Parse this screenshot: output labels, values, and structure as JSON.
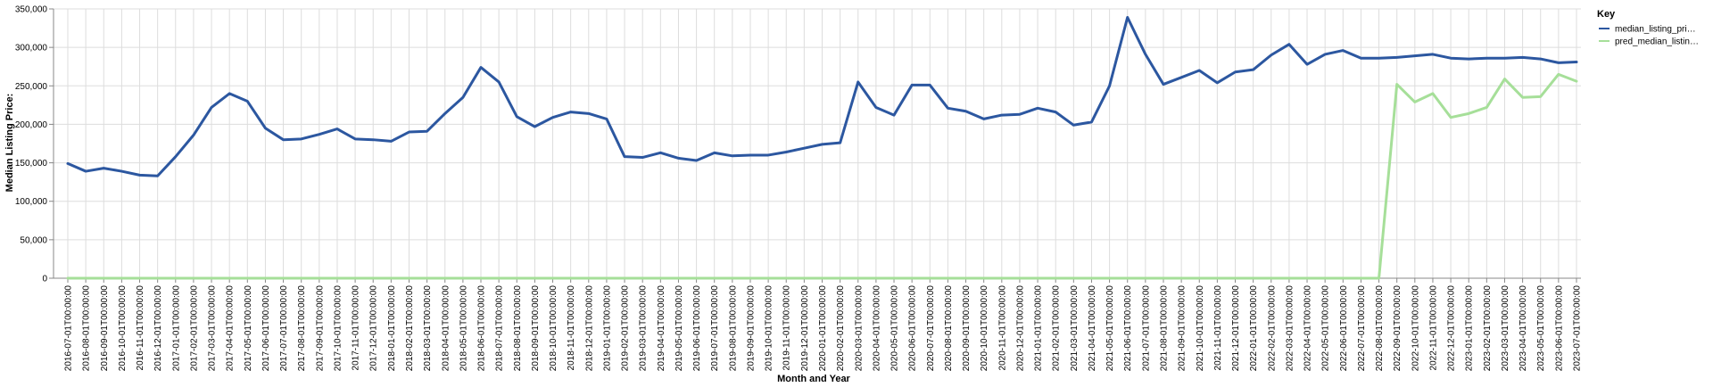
{
  "chart_data": {
    "type": "line",
    "xlabel": "Month and Year",
    "ylabel": "Median Listing Price:",
    "ylim": [
      0,
      350000
    ],
    "yticks": [
      0,
      50000,
      100000,
      150000,
      200000,
      250000,
      300000,
      350000
    ],
    "ytick_labels": [
      "0",
      "50,000",
      "100,000",
      "150,000",
      "200,000",
      "250,000",
      "300,000",
      "350,000"
    ],
    "grid": true,
    "legend": {
      "title": "Key",
      "placement": "right",
      "entries": [
        "median_listing_pri…",
        "pred_median_listin…"
      ]
    },
    "categories": [
      "2016-07-01T00:00:00",
      "2016-08-01T00:00:00",
      "2016-09-01T00:00:00",
      "2016-10-01T00:00:00",
      "2016-11-01T00:00:00",
      "2016-12-01T00:00:00",
      "2017-01-01T00:00:00",
      "2017-02-01T00:00:00",
      "2017-03-01T00:00:00",
      "2017-04-01T00:00:00",
      "2017-05-01T00:00:00",
      "2017-06-01T00:00:00",
      "2017-07-01T00:00:00",
      "2017-08-01T00:00:00",
      "2017-09-01T00:00:00",
      "2017-10-01T00:00:00",
      "2017-11-01T00:00:00",
      "2017-12-01T00:00:00",
      "2018-01-01T00:00:00",
      "2018-02-01T00:00:00",
      "2018-03-01T00:00:00",
      "2018-04-01T00:00:00",
      "2018-05-01T00:00:00",
      "2018-06-01T00:00:00",
      "2018-07-01T00:00:00",
      "2018-08-01T00:00:00",
      "2018-09-01T00:00:00",
      "2018-10-01T00:00:00",
      "2018-11-01T00:00:00",
      "2018-12-01T00:00:00",
      "2019-01-01T00:00:00",
      "2019-02-01T00:00:00",
      "2019-03-01T00:00:00",
      "2019-04-01T00:00:00",
      "2019-05-01T00:00:00",
      "2019-06-01T00:00:00",
      "2019-07-01T00:00:00",
      "2019-08-01T00:00:00",
      "2019-09-01T00:00:00",
      "2019-10-01T00:00:00",
      "2019-11-01T00:00:00",
      "2019-12-01T00:00:00",
      "2020-01-01T00:00:00",
      "2020-02-01T00:00:00",
      "2020-03-01T00:00:00",
      "2020-04-01T00:00:00",
      "2020-05-01T00:00:00",
      "2020-06-01T00:00:00",
      "2020-07-01T00:00:00",
      "2020-08-01T00:00:00",
      "2020-09-01T00:00:00",
      "2020-10-01T00:00:00",
      "2020-11-01T00:00:00",
      "2020-12-01T00:00:00",
      "2021-01-01T00:00:00",
      "2021-02-01T00:00:00",
      "2021-03-01T00:00:00",
      "2021-04-01T00:00:00",
      "2021-05-01T00:00:00",
      "2021-06-01T00:00:00",
      "2021-07-01T00:00:00",
      "2021-08-01T00:00:00",
      "2021-09-01T00:00:00",
      "2021-10-01T00:00:00",
      "2021-11-01T00:00:00",
      "2021-12-01T00:00:00",
      "2022-01-01T00:00:00",
      "2022-02-01T00:00:00",
      "2022-03-01T00:00:00",
      "2022-04-01T00:00:00",
      "2022-05-01T00:00:00",
      "2022-06-01T00:00:00",
      "2022-07-01T00:00:00",
      "2022-08-01T00:00:00",
      "2022-09-01T00:00:00",
      "2022-10-01T00:00:00",
      "2022-11-01T00:00:00",
      "2022-12-01T00:00:00",
      "2023-01-01T00:00:00",
      "2023-02-01T00:00:00",
      "2023-03-01T00:00:00",
      "2023-04-01T00:00:00",
      "2023-05-01T00:00:00",
      "2023-06-01T00:00:00",
      "2023-07-01T00:00:00"
    ],
    "series": [
      {
        "name": "median_listing_pri…",
        "color": "#2c57a0",
        "values": [
          149000,
          139000,
          143000,
          139000,
          134000,
          133000,
          158000,
          186000,
          222000,
          240000,
          230000,
          195000,
          180000,
          181000,
          187000,
          194000,
          181000,
          180000,
          178000,
          190000,
          191000,
          214000,
          235000,
          274000,
          255000,
          210000,
          197000,
          209000,
          216000,
          214000,
          207000,
          158000,
          157000,
          163000,
          156000,
          153000,
          163000,
          159000,
          160000,
          160000,
          164000,
          169000,
          174000,
          176000,
          255000,
          222000,
          212000,
          251000,
          251000,
          221000,
          217000,
          207000,
          212000,
          213000,
          221000,
          216000,
          199000,
          203000,
          250000,
          339000,
          291000,
          252000,
          261000,
          270000,
          254000,
          268000,
          271000,
          290000,
          304000,
          278000,
          291000,
          296000,
          286000,
          286000,
          287000,
          289000,
          291000,
          286000,
          285000,
          286000,
          286000,
          287000,
          285000,
          280000,
          281000
        ]
      },
      {
        "name": "pred_median_listin…",
        "color": "#a6df99",
        "values": [
          0,
          0,
          0,
          0,
          0,
          0,
          0,
          0,
          0,
          0,
          0,
          0,
          0,
          0,
          0,
          0,
          0,
          0,
          0,
          0,
          0,
          0,
          0,
          0,
          0,
          0,
          0,
          0,
          0,
          0,
          0,
          0,
          0,
          0,
          0,
          0,
          0,
          0,
          0,
          0,
          0,
          0,
          0,
          0,
          0,
          0,
          0,
          0,
          0,
          0,
          0,
          0,
          0,
          0,
          0,
          0,
          0,
          0,
          0,
          0,
          0,
          0,
          0,
          0,
          0,
          0,
          0,
          0,
          0,
          0,
          0,
          0,
          0,
          0,
          252000,
          229000,
          240000,
          209000,
          214000,
          222000,
          259000,
          235000,
          236000,
          265000,
          256000
        ]
      }
    ]
  }
}
